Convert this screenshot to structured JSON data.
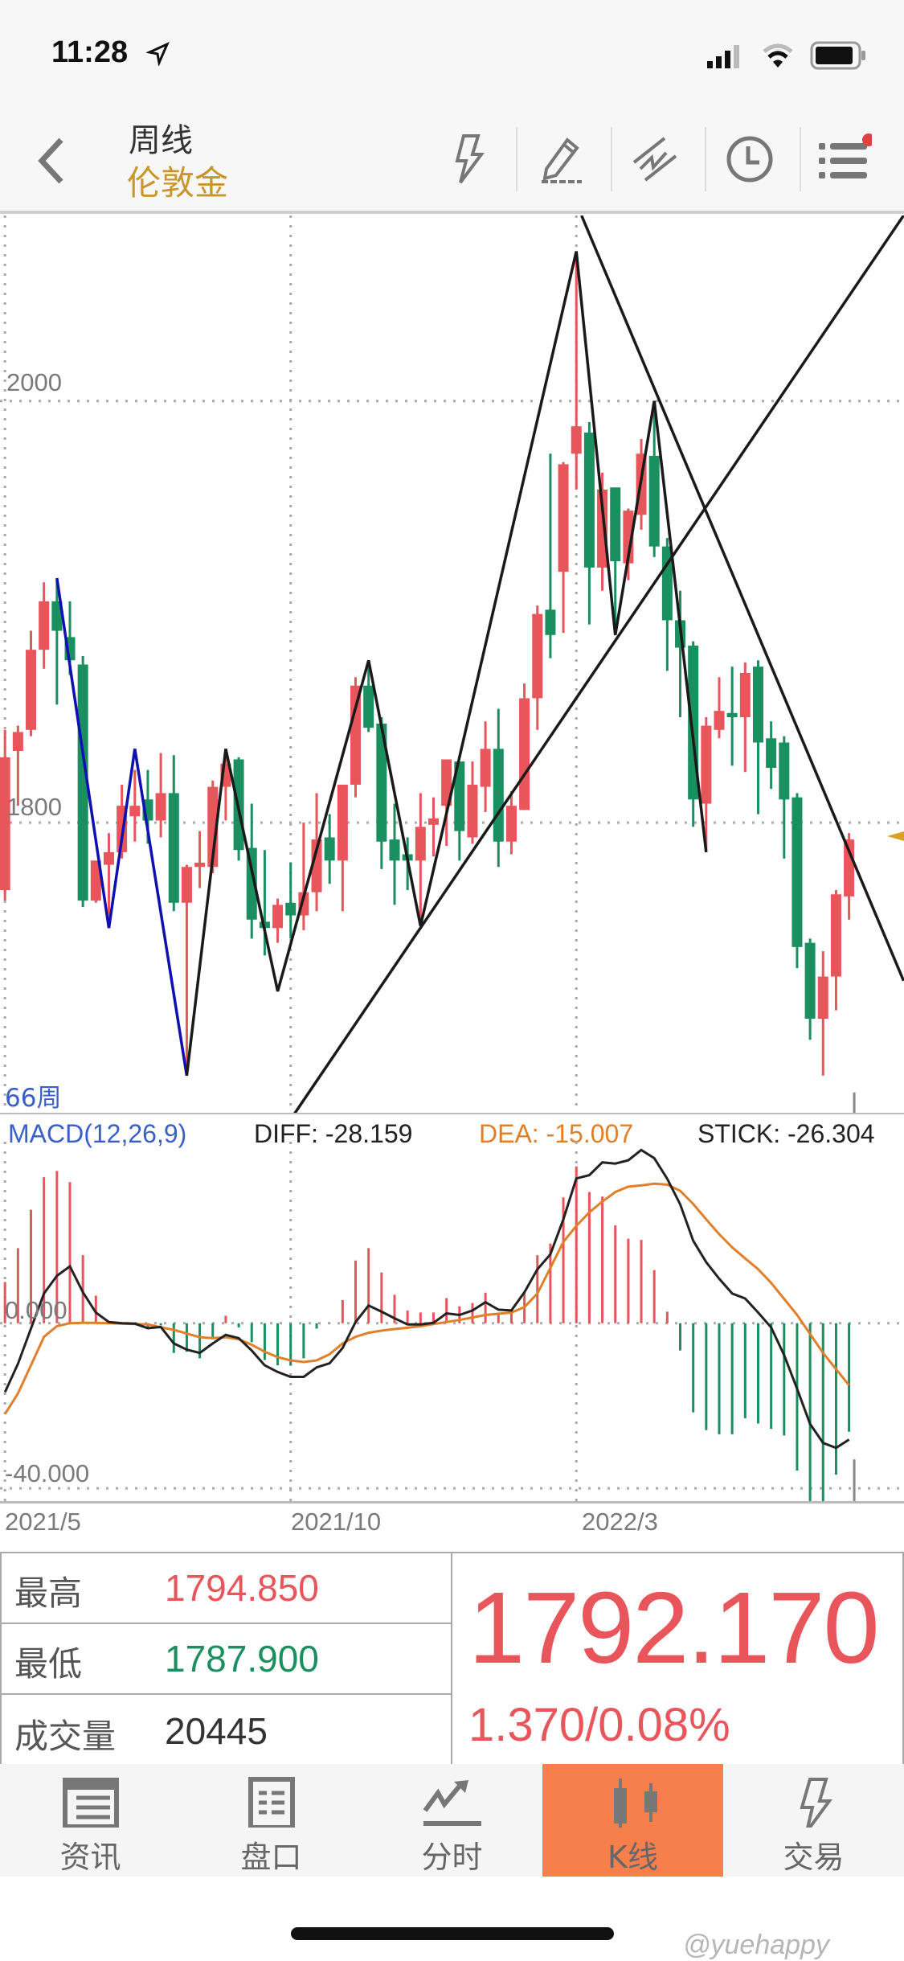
{
  "status_bar": {
    "time": "11:28",
    "icons": [
      "location-arrow-icon",
      "signal-icon",
      "wifi-icon",
      "battery-icon"
    ]
  },
  "header": {
    "title": "周线",
    "subtitle": "伦敦金",
    "toolbar_icons": [
      "lightning-icon",
      "pencil-draw-icon",
      "trendline-icon",
      "clock-icon",
      "menu-list-icon"
    ],
    "menu_badge": true
  },
  "colors": {
    "up": "#e8555a",
    "down": "#1a8f5f",
    "accent": "#c9962b",
    "active_tab": "#f77f4b",
    "diff": "#222222",
    "dea": "#e0802a",
    "macd_label": "#3a5fc8"
  },
  "chart_data": [
    {
      "type": "candlestick",
      "title": "",
      "period_label": "66周",
      "y_ticks": [
        "2000",
        "1800"
      ],
      "y_tick_values": [
        2000,
        1800
      ],
      "ylim": [
        1662,
        2088
      ],
      "x_ticks": [
        "2021/5",
        "2021/10",
        "2022/3"
      ],
      "x_tick_bars": [
        1,
        23,
        45
      ],
      "grid": true,
      "current_price_marker": 1792,
      "candles_ohlc": [
        [
          1768,
          1844,
          1763,
          1831
        ],
        [
          1834,
          1846,
          1808,
          1843
        ],
        [
          1844,
          1891,
          1841,
          1882
        ],
        [
          1882,
          1914,
          1873,
          1905
        ],
        [
          1905,
          1915,
          1856,
          1891
        ],
        [
          1888,
          1905,
          1870,
          1877
        ],
        [
          1875,
          1879,
          1760,
          1763
        ],
        [
          1763,
          1782,
          1762,
          1782
        ],
        [
          1780,
          1795,
          1750,
          1786
        ],
        [
          1786,
          1818,
          1783,
          1808
        ],
        [
          1803,
          1825,
          1791,
          1808
        ],
        [
          1811,
          1825,
          1790,
          1801
        ],
        [
          1801,
          1833,
          1793,
          1814
        ],
        [
          1814,
          1832,
          1758,
          1762
        ],
        [
          1762,
          1780,
          1680,
          1779
        ],
        [
          1779,
          1796,
          1769,
          1781
        ],
        [
          1779,
          1820,
          1776,
          1817
        ],
        [
          1817,
          1831,
          1801,
          1828
        ],
        [
          1830,
          1831,
          1782,
          1787
        ],
        [
          1788,
          1809,
          1745,
          1754
        ],
        [
          1753,
          1787,
          1737,
          1750
        ],
        [
          1750,
          1764,
          1743,
          1761
        ],
        [
          1762,
          1781,
          1745,
          1756
        ],
        [
          1756,
          1800,
          1749,
          1767
        ],
        [
          1767,
          1814,
          1758,
          1792
        ],
        [
          1793,
          1804,
          1771,
          1782
        ],
        [
          1782,
          1818,
          1758,
          1818
        ],
        [
          1818,
          1869,
          1812,
          1865
        ],
        [
          1865,
          1877,
          1843,
          1845
        ],
        [
          1847,
          1850,
          1778,
          1791
        ],
        [
          1792,
          1809,
          1761,
          1782
        ],
        [
          1785,
          1793,
          1768,
          1782
        ],
        [
          1782,
          1814,
          1752,
          1798
        ],
        [
          1799,
          1812,
          1784,
          1802
        ],
        [
          1808,
          1830,
          1789,
          1830
        ],
        [
          1829,
          1829,
          1782,
          1796
        ],
        [
          1793,
          1829,
          1790,
          1818
        ],
        [
          1817,
          1848,
          1805,
          1835
        ],
        [
          1835,
          1854,
          1779,
          1791
        ],
        [
          1791,
          1815,
          1785,
          1808
        ],
        [
          1806,
          1866,
          1806,
          1859
        ],
        [
          1859,
          1903,
          1844,
          1899
        ],
        [
          1901,
          1975,
          1878,
          1889
        ],
        [
          1919,
          1971,
          1890,
          1970
        ],
        [
          1975,
          2070,
          1958,
          1988
        ],
        [
          1985,
          1990,
          1894,
          1921
        ],
        [
          1921,
          1966,
          1910,
          1958
        ],
        [
          1959,
          1959,
          1890,
          1924
        ],
        [
          1923,
          1949,
          1915,
          1948
        ],
        [
          1946,
          1982,
          1939,
          1975
        ],
        [
          1974,
          1999,
          1926,
          1931
        ],
        [
          1931,
          1935,
          1872,
          1896
        ],
        [
          1896,
          1910,
          1850,
          1883
        ],
        [
          1884,
          1886,
          1798,
          1811
        ],
        [
          1809,
          1850,
          1787,
          1846
        ],
        [
          1844,
          1869,
          1840,
          1853
        ],
        [
          1852,
          1874,
          1827,
          1850
        ],
        [
          1850,
          1876,
          1824,
          1871
        ],
        [
          1874,
          1877,
          1804,
          1838
        ],
        [
          1840,
          1848,
          1816,
          1826
        ],
        [
          1838,
          1841,
          1783,
          1811
        ],
        [
          1812,
          1814,
          1731,
          1741
        ],
        [
          1743,
          1745,
          1697,
          1707
        ],
        [
          1707,
          1739,
          1680,
          1727
        ],
        [
          1727,
          1768,
          1711,
          1766
        ],
        [
          1765,
          1795,
          1754,
          1792
        ]
      ],
      "drawings": [
        {
          "kind": "zigzag",
          "color": "#1010b0",
          "points": [
            [
              5,
              1916
            ],
            [
              9,
              1750
            ],
            [
              11,
              1835
            ],
            [
              15,
              1680
            ]
          ]
        },
        {
          "kind": "zigzag",
          "color": "#1a1a1a",
          "points": [
            [
              15,
              1680
            ],
            [
              18,
              1835
            ],
            [
              22,
              1720
            ],
            [
              29,
              1877
            ],
            [
              33,
              1751
            ],
            [
              45,
              2071
            ],
            [
              48,
              1889
            ],
            [
              51,
              2000
            ],
            [
              55,
              1786
            ]
          ]
        },
        {
          "kind": "trendline",
          "color": "#1a1a1a",
          "points": [
            [
              23.3,
              1662
            ],
            [
              70.2,
              2088
            ]
          ]
        },
        {
          "kind": "trendline",
          "color": "#1a1a1a",
          "points": [
            [
              45.4,
              2088
            ],
            [
              70.2,
              1725
            ]
          ]
        }
      ]
    },
    {
      "type": "macd",
      "title": "MACD(12,26,9)",
      "legend": {
        "diff": "DIFF: -28.159",
        "dea": "DEA: -15.007",
        "stick": "STICK: -26.304"
      },
      "y_ticks": [
        "0.000",
        "-40.000"
      ],
      "y_tick_values": [
        0,
        -40
      ],
      "ylim": [
        -43.3,
        44
      ],
      "stick": [
        10,
        18.2,
        27.5,
        35.4,
        36.9,
        34.2,
        16.5,
        6.7,
        0.5,
        0,
        -0.3,
        -1.3,
        -0.5,
        -7.2,
        -6.9,
        -8.5,
        -3.9,
        1.8,
        -1,
        -4.6,
        -8.9,
        -10.2,
        -10.2,
        -8.5,
        -1.3,
        0.1,
        5.6,
        15.2,
        18.2,
        12.3,
        6.9,
        3.1,
        2.6,
        2.6,
        6.1,
        4.1,
        4.9,
        7.4,
        2.6,
        2.4,
        7.7,
        16.5,
        19.3,
        30.5,
        38,
        31.8,
        30.7,
        23.7,
        20.5,
        20.2,
        12.9,
        2.8,
        -6.6,
        -21.6,
        -25.9,
        -26.9,
        -26.9,
        -23,
        -24.3,
        -25.6,
        -27.2,
        -35.7,
        -43.6,
        -43.6,
        -36.7,
        -26.3
      ],
      "diff": [
        -16.7,
        -9.8,
        -1.3,
        7.2,
        11.5,
        13.8,
        7.5,
        2.6,
        0.3,
        0,
        -0.1,
        -1.2,
        -0.9,
        -4.9,
        -6.4,
        -7.2,
        -4.9,
        -2.8,
        -3.6,
        -6.6,
        -10.2,
        -11.8,
        -13,
        -13,
        -10.7,
        -9.7,
        -6,
        0.3,
        4.3,
        2.8,
        1.2,
        -0.3,
        -0.3,
        0.1,
        2.4,
        2,
        3.1,
        5.1,
        3.3,
        3.1,
        7.5,
        13.1,
        16.7,
        25.2,
        35.1,
        35.9,
        39,
        38.7,
        39.5,
        42,
        40,
        35,
        28.8,
        20,
        14.8,
        10.8,
        7.2,
        6,
        2.6,
        -1,
        -7.7,
        -15.9,
        -24.4,
        -29,
        -30.2,
        -28.2
      ],
      "dea": [
        -22,
        -17,
        -10.2,
        -3.3,
        -0.7,
        0,
        0.1,
        0.1,
        0,
        -0.1,
        -0.2,
        -0.3,
        -1,
        -1.6,
        -2.5,
        -3.4,
        -3.6,
        -3.4,
        -3.9,
        -5.2,
        -6.9,
        -8.2,
        -9,
        -9.4,
        -9,
        -7.5,
        -4.9,
        -3.3,
        -2.3,
        -1.8,
        -1.4,
        -1.1,
        -0.7,
        -0.2,
        0.3,
        0.8,
        1.4,
        2,
        2.3,
        2.6,
        3.9,
        7.2,
        13.4,
        19.7,
        23.6,
        26.9,
        29.5,
        31.8,
        33.1,
        33.4,
        33.8,
        33.6,
        32.1,
        28.9,
        25.2,
        21.6,
        18.4,
        15.7,
        13.1,
        9.8,
        5.9,
        2,
        -2.6,
        -7.2,
        -11.1,
        -15
      ]
    }
  ],
  "quote": {
    "high_label": "最高",
    "high": "1794.850",
    "low_label": "最低",
    "low": "1787.900",
    "volume_label": "成交量",
    "volume": "20445",
    "last": "1792.170",
    "change": "1.370/0.08%"
  },
  "tabs": [
    {
      "label": "资讯",
      "icon": "newspaper-icon",
      "active": false
    },
    {
      "label": "盘口",
      "icon": "order-book-icon",
      "active": false
    },
    {
      "label": "分时",
      "icon": "intraday-chart-icon",
      "active": false
    },
    {
      "label": "K线",
      "icon": "candlestick-icon",
      "active": true
    },
    {
      "label": "交易",
      "icon": "lightning-icon",
      "active": false
    }
  ],
  "watermark": "@yuehappy"
}
